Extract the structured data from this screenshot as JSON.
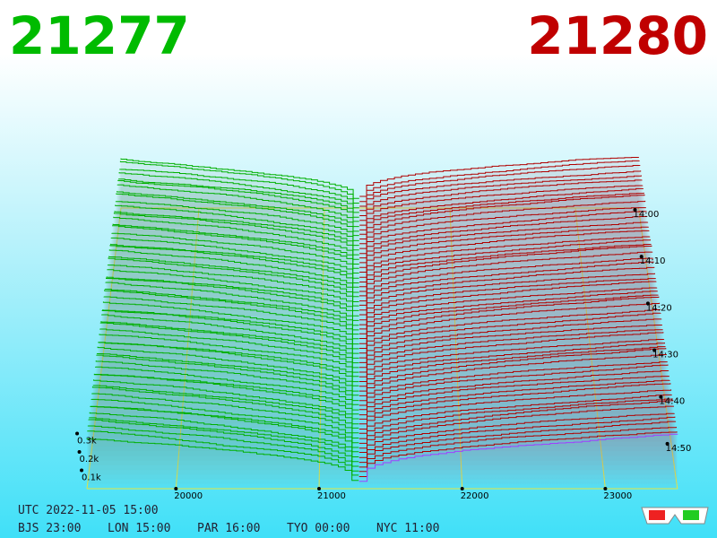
{
  "header": {
    "bid": "21277",
    "ask": "21280"
  },
  "chart_data": {
    "type": "depth3d",
    "xticks": [
      20000,
      21000,
      22000,
      23000
    ],
    "time_ticks": [
      "14:00",
      "14:10",
      "14:20",
      "14:30",
      "14:40",
      "14:50"
    ],
    "volume_ticks": [
      {
        "value": 100,
        "label": "0.1k"
      },
      {
        "value": 200,
        "label": "0.2k"
      },
      {
        "value": 300,
        "label": "0.3k"
      }
    ]
  },
  "footer": {
    "utc": "UTC 2022-11-05 15:00",
    "zones": [
      "BJS 23:00",
      "LON 15:00",
      "PAR 16:00",
      "TYO 00:00",
      "NYC 11:00"
    ]
  }
}
